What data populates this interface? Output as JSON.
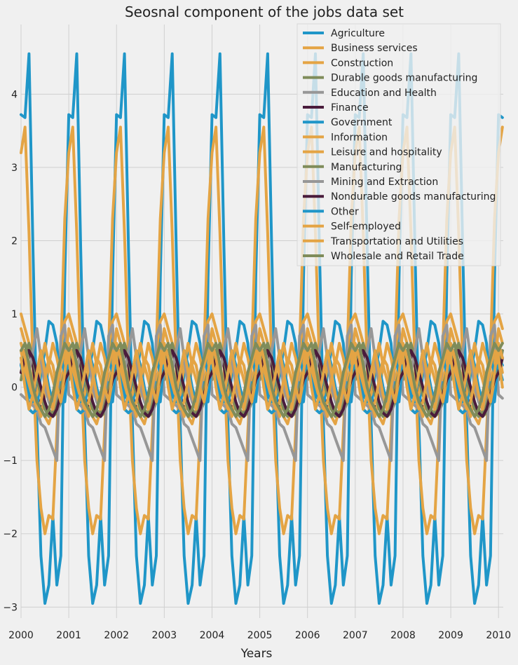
{
  "chart_data": {
    "type": "line",
    "title": "Seosnal component of the jobs data set",
    "xlabel": "Years",
    "ylabel": "",
    "xlim": [
      2000,
      2010.1
    ],
    "ylim": [
      -3.15,
      4.95
    ],
    "x_ticks": [
      "2000",
      "2001",
      "2002",
      "2003",
      "2004",
      "2005",
      "2006",
      "2007",
      "2008",
      "2009",
      "2010"
    ],
    "y_ticks": [
      {
        "value": -3,
        "label": "−3"
      },
      {
        "value": -2,
        "label": "−2"
      },
      {
        "value": -1,
        "label": "−1"
      },
      {
        "value": 0,
        "label": "0"
      },
      {
        "value": 1,
        "label": "1"
      },
      {
        "value": 2,
        "label": "2"
      },
      {
        "value": 3,
        "label": "3"
      },
      {
        "value": 4,
        "label": "4"
      }
    ],
    "grid": true,
    "legend_position": "top-right",
    "x_start": 2000,
    "step": 0.08333,
    "series": [
      {
        "name": "Agriculture",
        "color": "#1f96c8",
        "values": [
          3.72,
          3.68,
          4.55,
          1.9,
          -0.5,
          -2.3,
          -2.95,
          -2.7,
          -1.75,
          -2.7,
          -2.3,
          1.5
        ]
      },
      {
        "name": "Business services",
        "color": "#e4a444",
        "values": [
          3.2,
          3.55,
          2.1,
          0.3,
          -1.0,
          -1.65,
          -2.0,
          -1.75,
          -1.8,
          -0.6,
          0.5,
          2.3
        ]
      },
      {
        "name": "Construction",
        "color": "#e4a444",
        "values": [
          1.0,
          0.8,
          0.6,
          0.3,
          -0.1,
          -0.3,
          -0.4,
          -0.5,
          -0.3,
          0.0,
          0.5,
          0.9
        ]
      },
      {
        "name": "Durable goods manufacturing",
        "color": "#7f8c5a",
        "values": [
          0.1,
          0.4,
          0.55,
          0.3,
          0.1,
          -0.1,
          -0.25,
          -0.3,
          -0.4,
          -0.35,
          -0.2,
          0.1
        ]
      },
      {
        "name": "Education and Health",
        "color": "#979797",
        "values": [
          -0.1,
          -0.15,
          -0.2,
          -0.25,
          -0.3,
          -0.5,
          -0.55,
          -0.7,
          -0.85,
          -1.0,
          0.7,
          0.85
        ]
      },
      {
        "name": "Finance",
        "color": "#4a1c3c",
        "values": [
          0.3,
          0.5,
          0.5,
          0.3,
          -0.1,
          -0.3,
          -0.4,
          -0.3,
          -0.1,
          0.2,
          0.4,
          0.5
        ]
      },
      {
        "name": "Government",
        "color": "#1f96c8",
        "values": [
          0.4,
          0.3,
          -0.3,
          -0.35,
          -0.3,
          0.2,
          0.5,
          0.9,
          0.85,
          0.6,
          -0.1,
          -0.2
        ]
      },
      {
        "name": "Information",
        "color": "#e4a444",
        "values": [
          0.5,
          0.2,
          0.0,
          -0.2,
          -0.1,
          0.3,
          0.6,
          0.3,
          0.1,
          -0.1,
          -0.2,
          0.1
        ]
      },
      {
        "name": "Leisure and hospitality",
        "color": "#e4a444",
        "values": [
          0.8,
          0.6,
          0.3,
          0.0,
          -0.2,
          -0.4,
          -0.1,
          0.3,
          0.6,
          0.4,
          0.1,
          0.3
        ]
      },
      {
        "name": "Manufacturing",
        "color": "#7f8c5a",
        "values": [
          0.2,
          0.5,
          0.6,
          0.4,
          0.1,
          -0.1,
          -0.3,
          -0.4,
          -0.35,
          -0.2,
          0.0,
          0.2
        ]
      },
      {
        "name": "Mining and Extraction",
        "color": "#979797",
        "values": [
          0.6,
          0.4,
          0.2,
          0.5,
          0.8,
          0.4,
          0.0,
          -0.2,
          -0.3,
          -0.1,
          0.3,
          0.5
        ]
      },
      {
        "name": "Nondurable goods manufacturing",
        "color": "#4a1c3c",
        "values": [
          0.2,
          0.4,
          0.5,
          0.4,
          0.2,
          0.0,
          -0.2,
          -0.35,
          -0.4,
          -0.3,
          -0.1,
          0.1
        ]
      },
      {
        "name": "Other",
        "color": "#1f96c8",
        "values": [
          0.3,
          0.1,
          -0.1,
          -0.2,
          0.2,
          0.5,
          0.3,
          0.0,
          -0.2,
          0.1,
          0.4,
          0.2
        ]
      },
      {
        "name": "Self-employed",
        "color": "#e4a444",
        "values": [
          0.4,
          0.0,
          -0.3,
          -0.1,
          0.2,
          0.5,
          0.2,
          -0.1,
          -0.3,
          0.0,
          0.3,
          0.5
        ]
      },
      {
        "name": "Transportation and Utilities",
        "color": "#e4a444",
        "values": [
          0.6,
          0.4,
          0.1,
          -0.1,
          -0.3,
          -0.2,
          0.1,
          0.4,
          0.3,
          0.0,
          -0.2,
          0.2
        ]
      },
      {
        "name": "Wholesale and Retail Trade",
        "color": "#7f8c5a",
        "values": [
          0.5,
          0.6,
          0.3,
          0.0,
          -0.2,
          -0.3,
          -0.4,
          -0.3,
          -0.1,
          0.2,
          0.4,
          0.6
        ]
      }
    ]
  }
}
